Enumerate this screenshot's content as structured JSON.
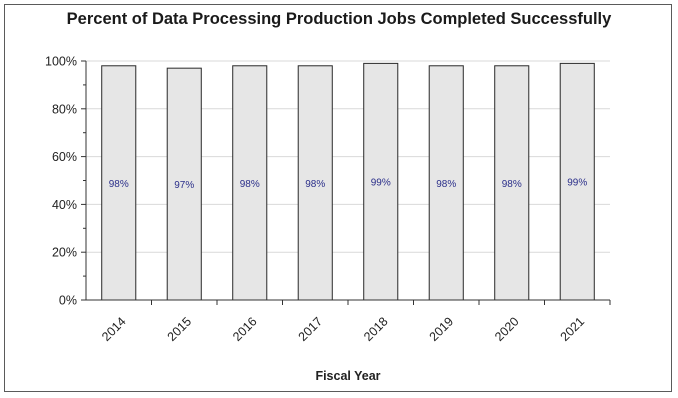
{
  "chart_data": {
    "type": "bar",
    "title": "Percent of Data Processing Production Jobs Completed Successfully",
    "xlabel": "Fiscal Year",
    "ylabel": "",
    "categories": [
      "2014",
      "2015",
      "2016",
      "2017",
      "2018",
      "2019",
      "2020",
      "2021"
    ],
    "values": [
      98,
      97,
      98,
      98,
      99,
      98,
      98,
      99
    ],
    "data_labels": [
      "98%",
      "97%",
      "98%",
      "98%",
      "99%",
      "98%",
      "98%",
      "99%"
    ],
    "ylim": [
      0,
      100
    ],
    "yticks": [
      0,
      20,
      40,
      60,
      80,
      100
    ],
    "ytick_labels": [
      "0%",
      "20%",
      "40%",
      "60%",
      "80%",
      "100%"
    ],
    "grid": true,
    "legend": "none",
    "colors": {
      "bar_fill": "#e6e6e6",
      "bar_stroke": "#2a2a2a",
      "grid": "#d9d9d9",
      "axis": "#333333",
      "data_label": "#2b2f8a"
    }
  }
}
